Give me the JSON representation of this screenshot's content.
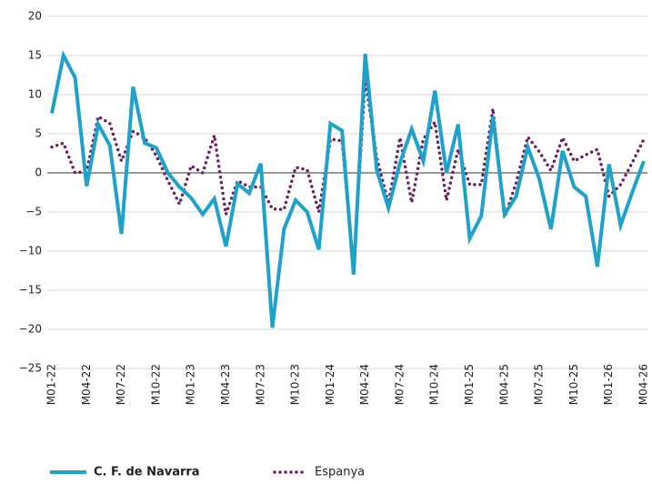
{
  "chart_data": {
    "type": "line",
    "categories": [
      "M01-22",
      null,
      null,
      "M04-22",
      null,
      null,
      "M07-22",
      null,
      null,
      "M10-22",
      null,
      null,
      "M01-23",
      null,
      null,
      "M04-23",
      null,
      null,
      "M07-23",
      null,
      null,
      "M10-23",
      null,
      null,
      "M01-24",
      null,
      null,
      "M04-24",
      null,
      null,
      "M07-24",
      null,
      null,
      "M10-24",
      null,
      null,
      "M01-25",
      null,
      null,
      "M04-25",
      null,
      null,
      "M07-25",
      null,
      null,
      "M10-25",
      null,
      null,
      "M01-26",
      null,
      null,
      "M04-26"
    ],
    "series": [
      {
        "name": "C. F. de Navarra",
        "color": "#1ea2cb",
        "style": "solid",
        "values": [
          7.6,
          15,
          12.2,
          -1.7,
          6.2,
          3.5,
          -7.8,
          11,
          3.8,
          3.2,
          0,
          -1.8,
          -3.2,
          -5.3,
          -3.3,
          -9.4,
          -1.4,
          -2.6,
          1.2,
          -19.8,
          -7.2,
          -3.5,
          -5,
          -9.8,
          6.3,
          5.4,
          -13,
          15.2,
          0.3,
          -4.5,
          1.3,
          5.6,
          1.5,
          10.5,
          0,
          6.2,
          -8.4,
          -5.5,
          7.2,
          -5.3,
          -3,
          3.3,
          -0.8,
          -7.2,
          2.8,
          -1.8,
          -3,
          -12,
          1.1,
          -6.7,
          -2.5,
          1.5
        ]
      },
      {
        "name": "Espanya",
        "color": "#6b2160",
        "style": "dotted",
        "values": [
          3.3,
          3.8,
          0,
          0.2,
          7.2,
          6.3,
          1.5,
          5.3,
          4.5,
          2.2,
          -1,
          -4,
          0.9,
          0,
          4.8,
          -5.3,
          -1,
          -1.8,
          -1.8,
          -4.6,
          -4.7,
          0.7,
          0.4,
          -5,
          4.3,
          4.1,
          -12,
          12,
          1.9,
          -3.9,
          4.5,
          -3.8,
          4.3,
          6.5,
          -3.5,
          3,
          -1.5,
          -1.5,
          8.2,
          -5.7,
          -1.3,
          4.6,
          2.7,
          0.3,
          4.5,
          1.5,
          2.3,
          3,
          -3,
          -1.5,
          1.3,
          4.3
        ]
      }
    ],
    "ylim": [
      -25,
      20
    ],
    "yticks": [
      {
        "value": -25,
        "label": "−25"
      },
      {
        "value": -20,
        "label": "−20"
      },
      {
        "value": -15,
        "label": "−15"
      },
      {
        "value": -10,
        "label": "−10"
      },
      {
        "value": -5,
        "label": "−5"
      },
      0,
      5,
      10,
      15,
      20
    ],
    "grid": true,
    "legend": "bottom"
  }
}
